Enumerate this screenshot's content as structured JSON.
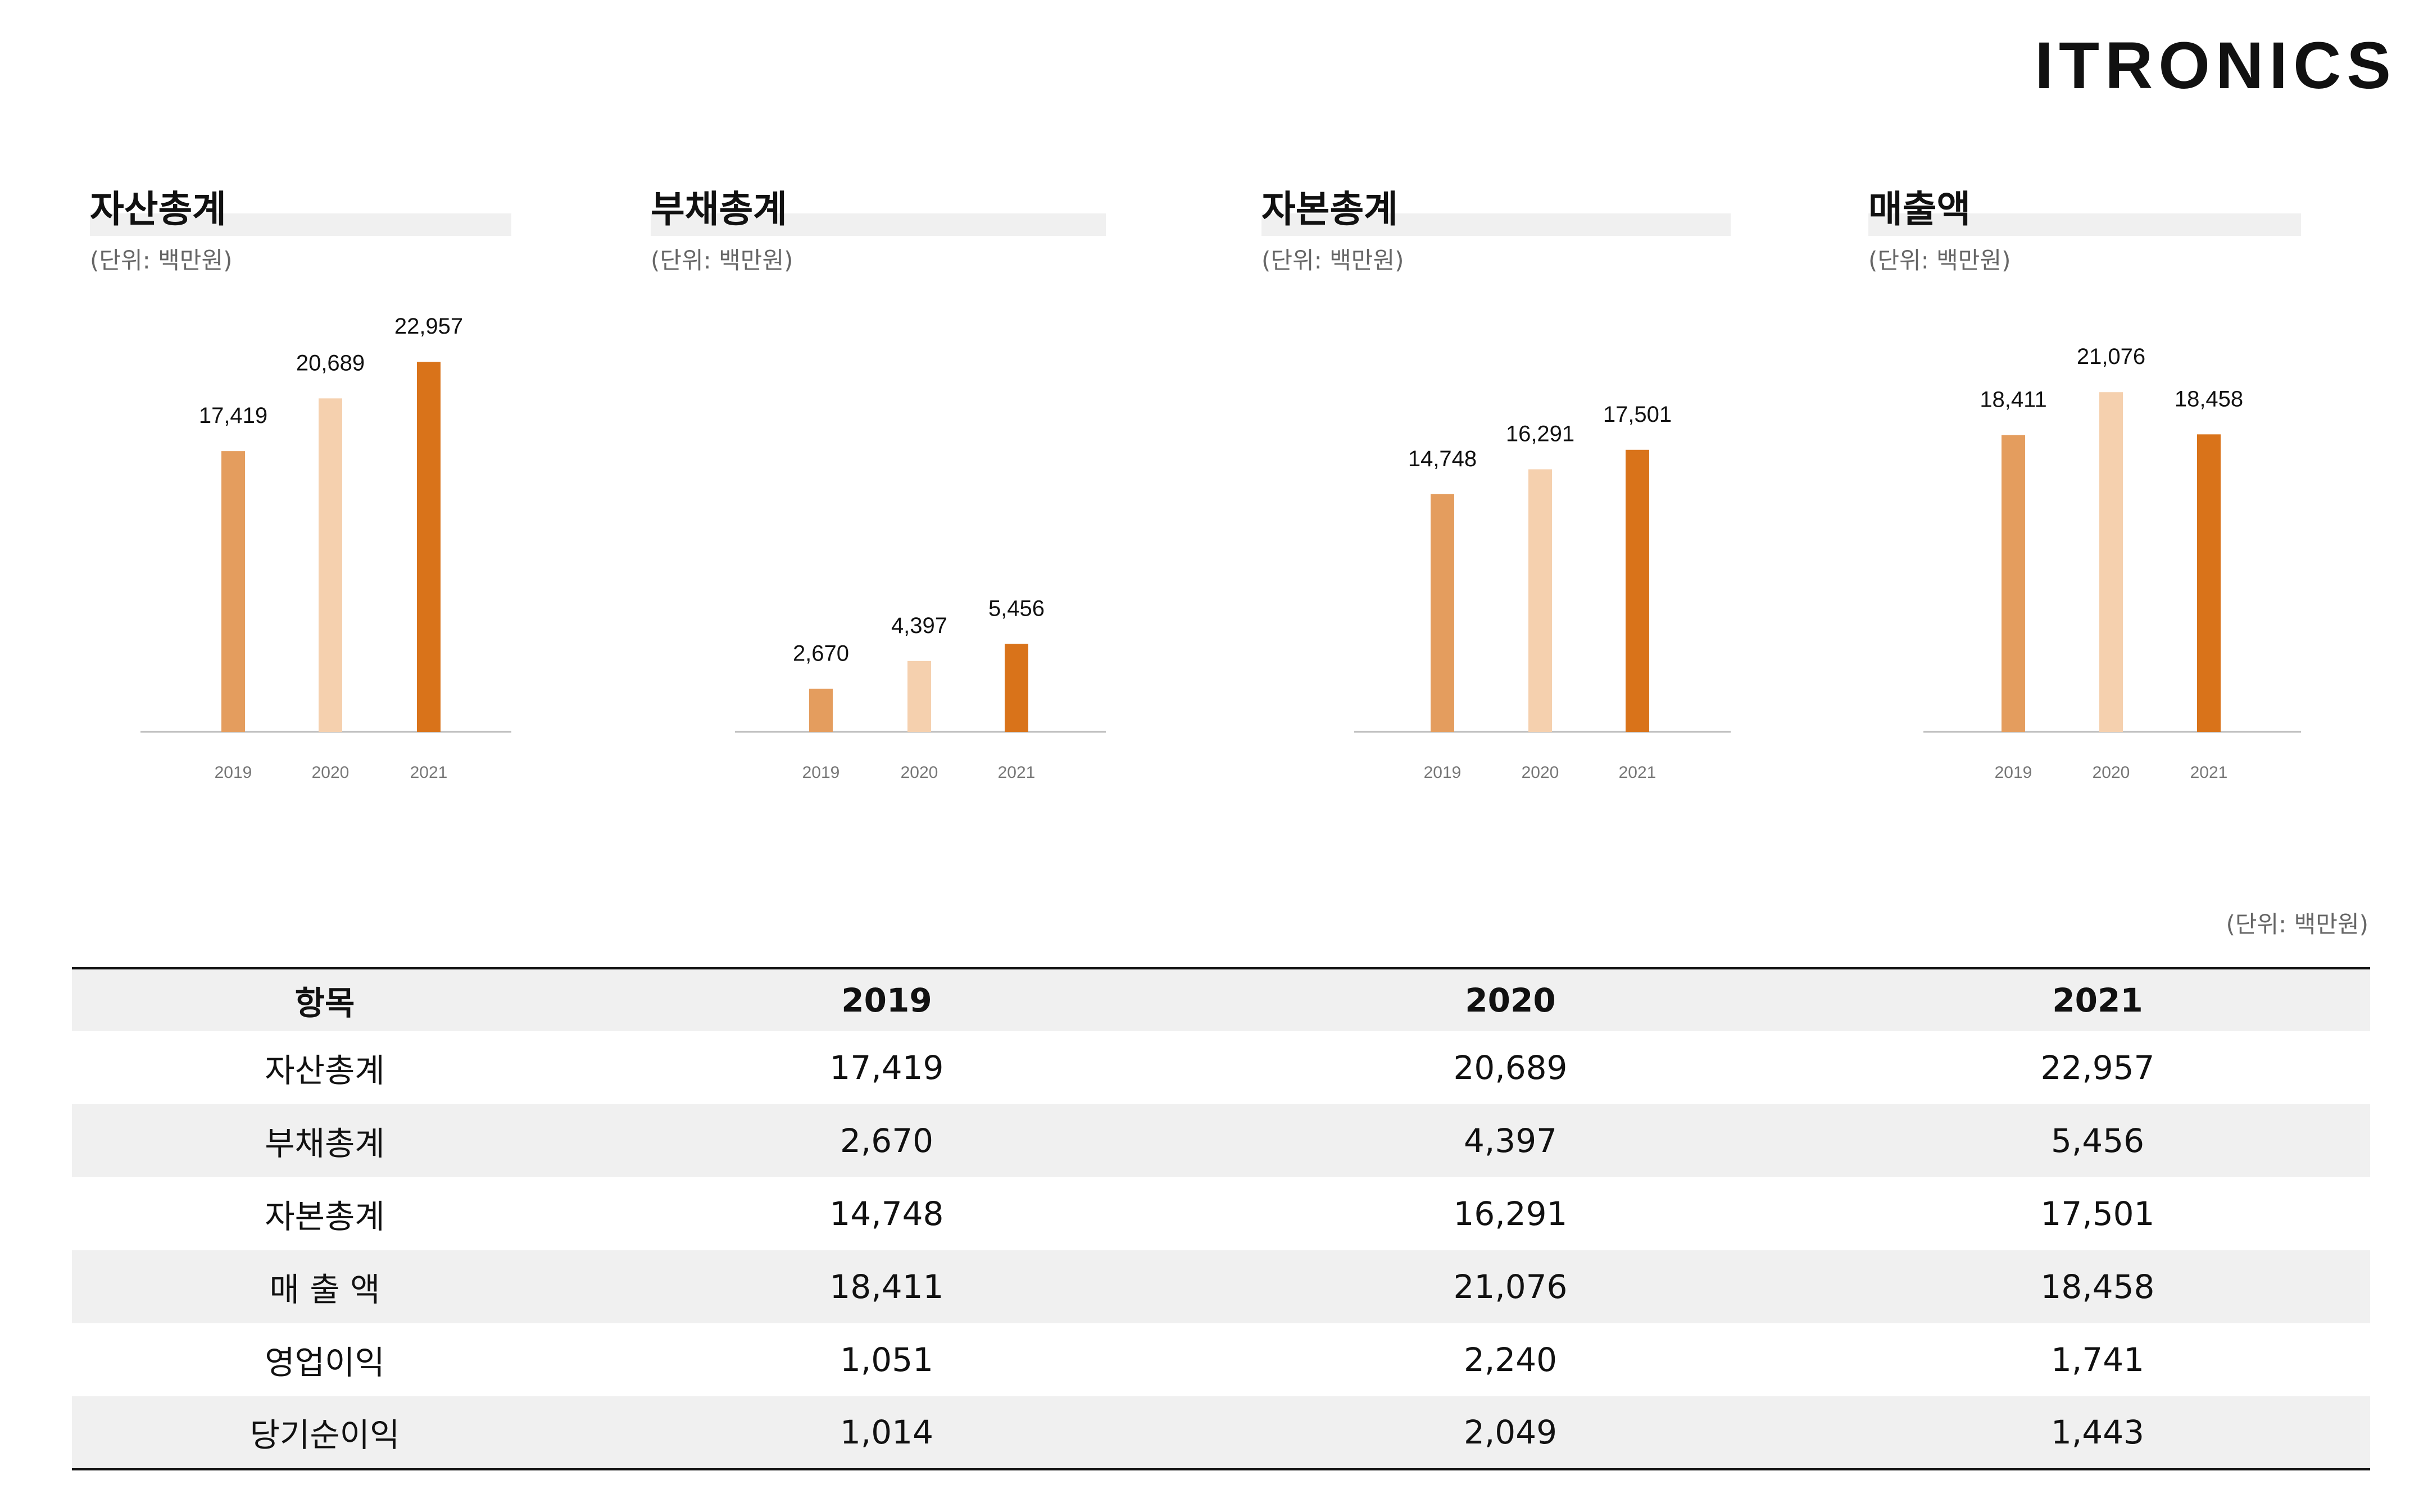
{
  "brand": {
    "logo": "ITRONICS",
    "accent": "#e07a1f"
  },
  "colors": {
    "y2019": "#e49d5e",
    "y2020": "#f5d0ae",
    "y2021": "#d9731a"
  },
  "chart_data": [
    {
      "type": "bar",
      "title": "자산총계",
      "subtitle": "(단위: 백만원)",
      "categories": [
        "2019",
        "2020",
        "2021"
      ],
      "values": [
        17419,
        20689,
        22957
      ],
      "value_labels": [
        "17,419",
        "20,689",
        "22,957"
      ],
      "ylim": [
        0,
        23000
      ]
    },
    {
      "type": "bar",
      "title": "부채총계",
      "subtitle": "(단위: 백만원)",
      "categories": [
        "2019",
        "2020",
        "2021"
      ],
      "values": [
        2670,
        4397,
        5456
      ],
      "value_labels": [
        "2,670",
        "4,397",
        "5,456"
      ],
      "ylim": [
        0,
        23000
      ]
    },
    {
      "type": "bar",
      "title": "자본총계",
      "subtitle": "(단위: 백만원)",
      "categories": [
        "2019",
        "2020",
        "2021"
      ],
      "values": [
        14748,
        16291,
        17501
      ],
      "value_labels": [
        "14,748",
        "16,291",
        "17,501"
      ],
      "ylim": [
        0,
        23000
      ]
    },
    {
      "type": "bar",
      "title": "매출액",
      "subtitle": "(단위: 백만원)",
      "categories": [
        "2019",
        "2020",
        "2021"
      ],
      "values": [
        18411,
        21076,
        18458
      ],
      "value_labels": [
        "18,411",
        "21,076",
        "18,458"
      ],
      "ylim": [
        0,
        23000
      ]
    }
  ],
  "table": {
    "unit": "(단위: 백만원)",
    "headers": [
      "항목",
      "2019",
      "2020",
      "2021"
    ],
    "rows": [
      [
        "자산총계",
        "17,419",
        "20,689",
        "22,957"
      ],
      [
        "부채총계",
        "2,670",
        "4,397",
        "5,456"
      ],
      [
        "자본총계",
        "14,748",
        "16,291",
        "17,501"
      ],
      [
        "매 출 액",
        "18,411",
        "21,076",
        "18,458"
      ],
      [
        "영업이익",
        "1,051",
        "2,240",
        "1,741"
      ],
      [
        "당기순이익",
        "1,014",
        "2,049",
        "1,443"
      ]
    ]
  }
}
